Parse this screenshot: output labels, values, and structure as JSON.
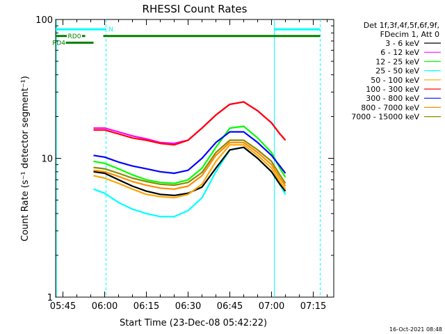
{
  "chart_data": {
    "type": "line",
    "title": "RHESSI Count Rates",
    "xlabel": "Start Time (23-Dec-08 05:42:22)",
    "ylabel": "Count Rate (s⁻¹ detector segment⁻¹)",
    "y_scale": "log",
    "ylim": [
      1,
      100
    ],
    "xlim": [
      "05:42:22",
      "07:22:22"
    ],
    "x_ticks": [
      "05:45",
      "06:00",
      "06:15",
      "06:30",
      "06:45",
      "07:00",
      "07:15"
    ],
    "y_ticks": [
      "1",
      "10",
      "100"
    ],
    "grid": false,
    "legend_position": "right",
    "legend_header": [
      "Det 1f,3f,4f,5f,6f,9f,",
      "FDecim 1, Att 0"
    ],
    "x": [
      "05:56",
      "06:00",
      "06:05",
      "06:10",
      "06:15",
      "06:20",
      "06:25",
      "06:30",
      "06:35",
      "06:40",
      "06:45",
      "06:50",
      "06:55",
      "07:00",
      "07:03",
      "07:05"
    ],
    "series": [
      {
        "name": "3 - 6 keV",
        "color": "#000000",
        "values": [
          8.0,
          7.8,
          7.0,
          6.3,
          5.8,
          5.5,
          5.4,
          5.6,
          6.2,
          8.5,
          11.5,
          12.0,
          10.0,
          8.0,
          6.5,
          5.8
        ]
      },
      {
        "name": "6 - 12 keV",
        "color": "#ff00ff",
        "values": [
          16.5,
          16.5,
          15.5,
          14.5,
          13.8,
          13.0,
          12.8,
          13.5,
          16.5,
          20.5,
          24.5,
          25.5,
          22.0,
          18.0,
          15.0,
          13.5
        ]
      },
      {
        "name": "12 - 25 keV",
        "color": "#00ff00",
        "values": [
          9.5,
          9.2,
          8.4,
          7.6,
          7.0,
          6.7,
          6.6,
          7.0,
          8.5,
          12.0,
          16.5,
          17.0,
          14.0,
          11.0,
          8.5,
          7.3
        ]
      },
      {
        "name": "25 - 50 keV",
        "color": "#00ffff",
        "values": [
          6.0,
          5.6,
          4.8,
          4.3,
          4.0,
          3.8,
          3.8,
          4.2,
          5.2,
          8.0,
          11.5,
          12.0,
          10.0,
          8.0,
          6.5,
          5.5
        ]
      },
      {
        "name": "50 - 100 keV",
        "color": "#ffa500",
        "values": [
          7.5,
          7.2,
          6.6,
          6.0,
          5.5,
          5.3,
          5.2,
          5.5,
          6.5,
          9.5,
          12.5,
          12.5,
          10.5,
          8.5,
          6.8,
          6.0
        ]
      },
      {
        "name": "100 - 300 keV",
        "color": "#ff0000",
        "values": [
          16.0,
          16.0,
          15.0,
          14.0,
          13.5,
          12.8,
          12.5,
          13.5,
          16.5,
          20.5,
          24.5,
          25.5,
          22.0,
          18.0,
          15.0,
          13.5
        ]
      },
      {
        "name": "300 - 800 keV",
        "color": "#0000ff",
        "values": [
          10.5,
          10.2,
          9.4,
          8.8,
          8.4,
          8.0,
          7.8,
          8.2,
          10.0,
          13.0,
          15.5,
          15.5,
          13.0,
          10.5,
          8.8,
          7.8
        ]
      },
      {
        "name": "800 - 7000 keV",
        "color": "#ff8c00",
        "values": [
          8.2,
          8.0,
          7.4,
          6.8,
          6.4,
          6.1,
          6.0,
          6.3,
          7.5,
          10.5,
          13.0,
          13.0,
          11.0,
          9.0,
          7.2,
          6.3
        ]
      },
      {
        "name": "7000 - 15000 keV",
        "color": "#8b8b00",
        "values": [
          8.6,
          8.4,
          7.8,
          7.2,
          6.8,
          6.5,
          6.4,
          6.7,
          7.9,
          11.0,
          13.5,
          13.5,
          11.5,
          9.5,
          7.6,
          6.6
        ]
      }
    ],
    "flag_bars": [
      {
        "label": "N",
        "color": "#00ffff",
        "y": 85,
        "start": "05:42:22",
        "end": "06:00:30",
        "start2": "07:01:00",
        "end2": "07:17:30"
      },
      {
        "label": "RD0",
        "color": "#008000",
        "y": 76,
        "start": "05:42:22",
        "end": "05:53:00",
        "start2": "05:59:30",
        "end2": "07:17:30"
      },
      {
        "label": "RD4",
        "color": "#008000",
        "y": 68,
        "start": "05:46:00",
        "end": "05:56:00"
      }
    ],
    "vlines": [
      {
        "time": "05:42:40",
        "style": "solid",
        "color": "#00ffff"
      },
      {
        "time": "06:00:30",
        "style": "dashed",
        "color": "#00ffff"
      },
      {
        "time": "07:01:00",
        "style": "solid",
        "color": "#00ffff"
      },
      {
        "time": "07:17:30",
        "style": "dashed",
        "color": "#00ffff"
      }
    ]
  },
  "footer": {
    "timestamp": "16-Oct-2021 08:48"
  }
}
